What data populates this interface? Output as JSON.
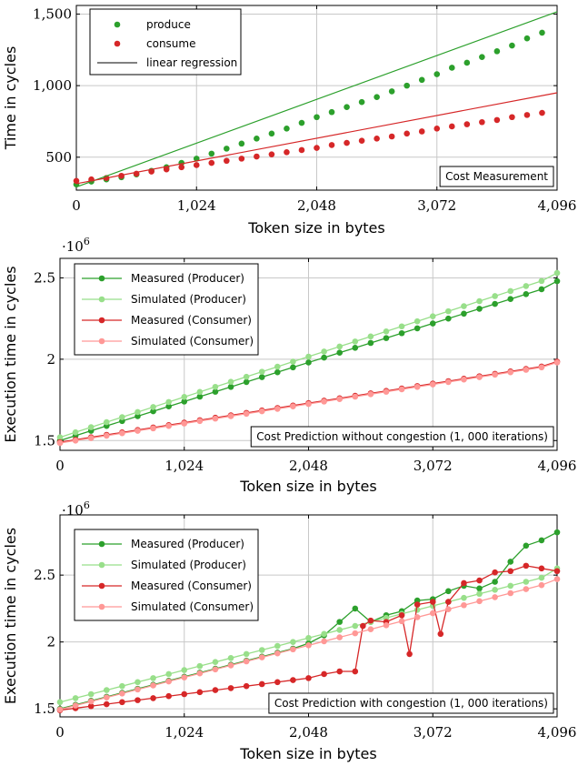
{
  "chart_data": [
    {
      "type": "scatter",
      "xlabel": "Token size in bytes",
      "ylabel": "Time in cycles",
      "xlim": [
        0,
        4096
      ],
      "ylim": [
        270,
        1560
      ],
      "xticks": [
        0,
        1024,
        2048,
        3072,
        4096
      ],
      "xtick_labels": [
        "0",
        "1,024",
        "2,048",
        "3,072",
        "4,096"
      ],
      "yticks": [
        500,
        1000,
        1500
      ],
      "ytick_labels": [
        "500",
        "1,000",
        "1,500"
      ],
      "grid": true,
      "legend_position": "top-left",
      "annotation": "Cost Measurement",
      "series": [
        {
          "name": "produce",
          "kind": "points",
          "color": "#2ca02c",
          "x": [
            0,
            128,
            256,
            384,
            512,
            640,
            768,
            896,
            1024,
            1152,
            1280,
            1408,
            1536,
            1664,
            1792,
            1920,
            2048,
            2176,
            2304,
            2432,
            2560,
            2688,
            2816,
            2944,
            3072,
            3200,
            3328,
            3456,
            3584,
            3712,
            3840,
            3968
          ],
          "y": [
            310,
            330,
            345,
            360,
            380,
            405,
            430,
            460,
            490,
            525,
            560,
            595,
            630,
            665,
            700,
            740,
            780,
            815,
            850,
            885,
            920,
            960,
            1000,
            1040,
            1080,
            1125,
            1160,
            1200,
            1240,
            1280,
            1330,
            1370
          ]
        },
        {
          "name": "consume",
          "kind": "points",
          "color": "#d62728",
          "x": [
            0,
            128,
            256,
            384,
            512,
            640,
            768,
            896,
            1024,
            1152,
            1280,
            1408,
            1536,
            1664,
            1792,
            1920,
            2048,
            2176,
            2304,
            2432,
            2560,
            2688,
            2816,
            2944,
            3072,
            3200,
            3328,
            3456,
            3584,
            3712,
            3840,
            3968
          ],
          "y": [
            335,
            345,
            355,
            370,
            385,
            400,
            415,
            430,
            445,
            460,
            475,
            490,
            505,
            520,
            535,
            550,
            565,
            585,
            600,
            615,
            630,
            645,
            665,
            680,
            700,
            715,
            730,
            745,
            760,
            780,
            795,
            810
          ]
        },
        {
          "name": "linear regression",
          "kind": "line",
          "color": "#2ca02c",
          "x": [
            0,
            4096
          ],
          "y": [
            292,
            1516
          ]
        },
        {
          "name": "",
          "kind": "line",
          "color": "#d62728",
          "x": [
            0,
            4096
          ],
          "y": [
            315,
            950
          ]
        }
      ]
    },
    {
      "type": "line",
      "xlabel": "Token size in bytes",
      "ylabel": "Execution time in cycles",
      "y_multiplier": "·10",
      "y_multiplier_exp": "6",
      "xlim": [
        0,
        4096
      ],
      "ylim": [
        1.44,
        2.62
      ],
      "xticks": [
        0,
        1024,
        2048,
        3072,
        4096
      ],
      "xtick_labels": [
        "0",
        "1,024",
        "2,048",
        "3,072",
        "4,096"
      ],
      "yticks": [
        1.5,
        2,
        2.5
      ],
      "ytick_labels": [
        "1.5",
        "2",
        "2.5"
      ],
      "grid": true,
      "legend_position": "top-left",
      "annotation": "Cost Prediction without congestion (1, 000 iterations)",
      "series": [
        {
          "name": "Measured (Producer)",
          "color": "#2ca02c",
          "x": [
            0,
            128,
            256,
            384,
            512,
            640,
            768,
            896,
            1024,
            1152,
            1280,
            1408,
            1536,
            1664,
            1792,
            1920,
            2048,
            2176,
            2304,
            2432,
            2560,
            2688,
            2816,
            2944,
            3072,
            3200,
            3328,
            3456,
            3584,
            3712,
            3840,
            3968,
            4096
          ],
          "y": [
            1.5,
            1.53,
            1.56,
            1.59,
            1.62,
            1.65,
            1.68,
            1.71,
            1.74,
            1.77,
            1.8,
            1.83,
            1.86,
            1.89,
            1.92,
            1.95,
            1.98,
            2.01,
            2.04,
            2.07,
            2.1,
            2.13,
            2.16,
            2.19,
            2.22,
            2.25,
            2.28,
            2.31,
            2.34,
            2.37,
            2.4,
            2.43,
            2.48
          ]
        },
        {
          "name": "Simulated (Producer)",
          "color": "#98df8a",
          "x": [
            0,
            128,
            256,
            384,
            512,
            640,
            768,
            896,
            1024,
            1152,
            1280,
            1408,
            1536,
            1664,
            1792,
            1920,
            2048,
            2176,
            2304,
            2432,
            2560,
            2688,
            2816,
            2944,
            3072,
            3200,
            3328,
            3456,
            3584,
            3712,
            3840,
            3968,
            4096
          ],
          "y": [
            1.52,
            1.551,
            1.582,
            1.613,
            1.644,
            1.675,
            1.706,
            1.737,
            1.768,
            1.799,
            1.83,
            1.861,
            1.892,
            1.923,
            1.954,
            1.985,
            2.016,
            2.047,
            2.078,
            2.109,
            2.14,
            2.171,
            2.202,
            2.233,
            2.264,
            2.295,
            2.326,
            2.357,
            2.388,
            2.419,
            2.45,
            2.481,
            2.53
          ]
        },
        {
          "name": "Measured (Consumer)",
          "color": "#d62728",
          "x": [
            0,
            128,
            256,
            384,
            512,
            640,
            768,
            896,
            1024,
            1152,
            1280,
            1408,
            1536,
            1664,
            1792,
            1920,
            2048,
            2176,
            2304,
            2432,
            2560,
            2688,
            2816,
            2944,
            3072,
            3200,
            3328,
            3456,
            3584,
            3712,
            3840,
            3968,
            4096
          ],
          "y": [
            1.49,
            1.505,
            1.52,
            1.535,
            1.55,
            1.565,
            1.58,
            1.595,
            1.61,
            1.625,
            1.64,
            1.655,
            1.67,
            1.685,
            1.7,
            1.715,
            1.73,
            1.745,
            1.76,
            1.775,
            1.79,
            1.805,
            1.82,
            1.835,
            1.85,
            1.865,
            1.88,
            1.895,
            1.91,
            1.925,
            1.94,
            1.955,
            1.985
          ]
        },
        {
          "name": "Simulated (Consumer)",
          "color": "#ff9896",
          "x": [
            0,
            128,
            256,
            384,
            512,
            640,
            768,
            896,
            1024,
            1152,
            1280,
            1408,
            1536,
            1664,
            1792,
            1920,
            2048,
            2176,
            2304,
            2432,
            2560,
            2688,
            2816,
            2944,
            3072,
            3200,
            3328,
            3456,
            3584,
            3712,
            3840,
            3968,
            4096
          ],
          "y": [
            1.485,
            1.5,
            1.515,
            1.53,
            1.545,
            1.56,
            1.575,
            1.59,
            1.605,
            1.62,
            1.635,
            1.65,
            1.665,
            1.68,
            1.695,
            1.71,
            1.725,
            1.74,
            1.755,
            1.77,
            1.785,
            1.8,
            1.815,
            1.83,
            1.845,
            1.86,
            1.875,
            1.89,
            1.905,
            1.92,
            1.935,
            1.95,
            1.98
          ]
        }
      ]
    },
    {
      "type": "line",
      "xlabel": "Token size in bytes",
      "ylabel": "Execution time in cycles",
      "y_multiplier": "·10",
      "y_multiplier_exp": "6",
      "xlim": [
        0,
        4096
      ],
      "ylim": [
        1.44,
        2.95
      ],
      "xticks": [
        0,
        1024,
        2048,
        3072,
        4096
      ],
      "xtick_labels": [
        "0",
        "1,024",
        "2,048",
        "3,072",
        "4,096"
      ],
      "yticks": [
        1.5,
        2,
        2.5
      ],
      "ytick_labels": [
        "1.5",
        "2",
        "2.5"
      ],
      "grid": true,
      "legend_position": "top-left",
      "annotation": "Cost Prediction with congestion (1, 000 iterations)",
      "series": [
        {
          "name": "Measured (Producer)",
          "color": "#2ca02c",
          "x": [
            0,
            128,
            256,
            384,
            512,
            640,
            768,
            896,
            1024,
            1152,
            1280,
            1408,
            1536,
            1664,
            1792,
            1920,
            2048,
            2176,
            2304,
            2432,
            2560,
            2688,
            2816,
            2944,
            3072,
            3200,
            3328,
            3456,
            3584,
            3712,
            3840,
            3968,
            4096
          ],
          "y": [
            1.5,
            1.53,
            1.56,
            1.59,
            1.62,
            1.65,
            1.68,
            1.71,
            1.74,
            1.77,
            1.8,
            1.83,
            1.86,
            1.89,
            1.92,
            1.95,
            1.99,
            2.05,
            2.15,
            2.25,
            2.15,
            2.2,
            2.23,
            2.31,
            2.32,
            2.38,
            2.42,
            2.4,
            2.45,
            2.6,
            2.72,
            2.76,
            2.82
          ]
        },
        {
          "name": "Simulated (Producer)",
          "color": "#98df8a",
          "x": [
            0,
            128,
            256,
            384,
            512,
            640,
            768,
            896,
            1024,
            1152,
            1280,
            1408,
            1536,
            1664,
            1792,
            1920,
            2048,
            2176,
            2304,
            2432,
            2560,
            2688,
            2816,
            2944,
            3072,
            3200,
            3328,
            3456,
            3584,
            3712,
            3840,
            3968,
            4096
          ],
          "y": [
            1.55,
            1.58,
            1.61,
            1.64,
            1.67,
            1.7,
            1.73,
            1.76,
            1.79,
            1.82,
            1.85,
            1.88,
            1.91,
            1.94,
            1.97,
            2.0,
            2.03,
            2.06,
            2.09,
            2.12,
            2.15,
            2.18,
            2.21,
            2.24,
            2.27,
            2.3,
            2.33,
            2.36,
            2.39,
            2.42,
            2.45,
            2.48,
            2.55
          ]
        },
        {
          "name": "Measured (Consumer)",
          "color": "#d62728",
          "x": [
            0,
            128,
            256,
            384,
            512,
            640,
            768,
            896,
            1024,
            1152,
            1280,
            1408,
            1536,
            1664,
            1792,
            1920,
            2048,
            2176,
            2304,
            2432,
            2496,
            2560,
            2688,
            2816,
            2880,
            2944,
            3072,
            3136,
            3200,
            3328,
            3456,
            3584,
            3712,
            3840,
            3968,
            4096
          ],
          "y": [
            1.49,
            1.505,
            1.52,
            1.535,
            1.55,
            1.565,
            1.58,
            1.595,
            1.61,
            1.625,
            1.64,
            1.655,
            1.67,
            1.685,
            1.7,
            1.715,
            1.73,
            1.76,
            1.78,
            1.78,
            2.12,
            2.16,
            2.15,
            2.2,
            1.91,
            2.28,
            2.3,
            2.06,
            2.3,
            2.44,
            2.46,
            2.52,
            2.53,
            2.57,
            2.55,
            2.53
          ]
        },
        {
          "name": "Simulated (Consumer)",
          "color": "#ff9896",
          "x": [
            0,
            128,
            256,
            384,
            512,
            640,
            768,
            896,
            1024,
            1152,
            1280,
            1408,
            1536,
            1664,
            1792,
            1920,
            2048,
            2176,
            2304,
            2432,
            2560,
            2688,
            2816,
            2944,
            3072,
            3200,
            3328,
            3456,
            3584,
            3712,
            3840,
            3968,
            4096
          ],
          "y": [
            1.495,
            1.525,
            1.555,
            1.585,
            1.615,
            1.645,
            1.675,
            1.705,
            1.735,
            1.765,
            1.795,
            1.825,
            1.855,
            1.885,
            1.915,
            1.945,
            1.975,
            2.005,
            2.035,
            2.065,
            2.095,
            2.125,
            2.155,
            2.185,
            2.215,
            2.245,
            2.275,
            2.305,
            2.335,
            2.365,
            2.395,
            2.425,
            2.47
          ]
        }
      ]
    }
  ]
}
